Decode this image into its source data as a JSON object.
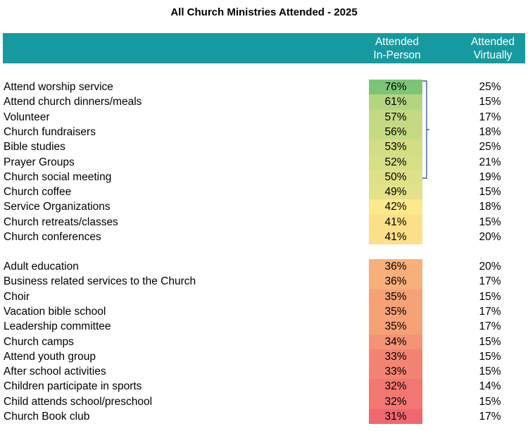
{
  "chart_data": {
    "type": "table",
    "title": "All Church Ministries Attended - 2025",
    "columns": [
      {
        "label_line1": "Attended",
        "label_line2": "In-Person"
      },
      {
        "label_line1": "Attended",
        "label_line2": "Virtually"
      }
    ],
    "groups": [
      {
        "rows": [
          {
            "label": "Attend worship service",
            "in_person": 76,
            "in_person_text": "76%",
            "virtually": 25,
            "virtually_text": "25%"
          },
          {
            "label": "Attend church dinners/meals",
            "in_person": 61,
            "in_person_text": "61%",
            "virtually": 15,
            "virtually_text": "15%"
          },
          {
            "label": "Volunteer",
            "in_person": 57,
            "in_person_text": "57%",
            "virtually": 17,
            "virtually_text": "17%"
          },
          {
            "label": "Church fundraisers",
            "in_person": 56,
            "in_person_text": "56%",
            "virtually": 18,
            "virtually_text": "18%"
          },
          {
            "label": "Bible studies",
            "in_person": 53,
            "in_person_text": "53%",
            "virtually": 25,
            "virtually_text": "25%"
          },
          {
            "label": "Prayer Groups",
            "in_person": 52,
            "in_person_text": "52%",
            "virtually": 21,
            "virtually_text": "21%"
          },
          {
            "label": "Church social meeting",
            "in_person": 50,
            "in_person_text": "50%",
            "virtually": 19,
            "virtually_text": "19%"
          },
          {
            "label": "Church coffee",
            "in_person": 49,
            "in_person_text": "49%",
            "virtually": 15,
            "virtually_text": "15%"
          },
          {
            "label": "Service Organizations",
            "in_person": 42,
            "in_person_text": "42%",
            "virtually": 18,
            "virtually_text": "18%"
          },
          {
            "label": "Church retreats/classes",
            "in_person": 41,
            "in_person_text": "41%",
            "virtually": 15,
            "virtually_text": "15%"
          },
          {
            "label": "Church conferences",
            "in_person": 41,
            "in_person_text": "41%",
            "virtually": 20,
            "virtually_text": "20%"
          }
        ]
      },
      {
        "rows": [
          {
            "label": "Adult education",
            "in_person": 36,
            "in_person_text": "36%",
            "virtually": 20,
            "virtually_text": "20%"
          },
          {
            "label": "Business related services to the Church",
            "in_person": 36,
            "in_person_text": "36%",
            "virtually": 17,
            "virtually_text": "17%"
          },
          {
            "label": "Choir",
            "in_person": 35,
            "in_person_text": "35%",
            "virtually": 15,
            "virtually_text": "15%"
          },
          {
            "label": "Vacation bible school",
            "in_person": 35,
            "in_person_text": "35%",
            "virtually": 17,
            "virtually_text": "17%"
          },
          {
            "label": "Leadership committee",
            "in_person": 35,
            "in_person_text": "35%",
            "virtually": 17,
            "virtually_text": "17%"
          },
          {
            "label": "Church camps",
            "in_person": 34,
            "in_person_text": "34%",
            "virtually": 15,
            "virtually_text": "15%"
          },
          {
            "label": "Attend youth group",
            "in_person": 33,
            "in_person_text": "33%",
            "virtually": 15,
            "virtually_text": "15%"
          },
          {
            "label": "After school activities",
            "in_person": 33,
            "in_person_text": "33%",
            "virtually": 15,
            "virtually_text": "15%"
          },
          {
            "label": "Children participate in sports",
            "in_person": 32,
            "in_person_text": "32%",
            "virtually": 14,
            "virtually_text": "14%"
          },
          {
            "label": "Child attends school/preschool",
            "in_person": 32,
            "in_person_text": "32%",
            "virtually": 15,
            "virtually_text": "15%"
          },
          {
            "label": "Church Book club",
            "in_person": 31,
            "in_person_text": "31%",
            "virtually": 17,
            "virtually_text": "17%"
          }
        ]
      }
    ],
    "colors": {
      "header_bg": "#169aa0",
      "header_text": "#ffffff",
      "bracket": "#3f5f9a",
      "heatmap_scale": [
        "#f0676f",
        "#f8b07a",
        "#fce98c",
        "#7cc577"
      ]
    },
    "bracket_span_rows": [
      "Attend worship service",
      "Church social meeting"
    ]
  }
}
